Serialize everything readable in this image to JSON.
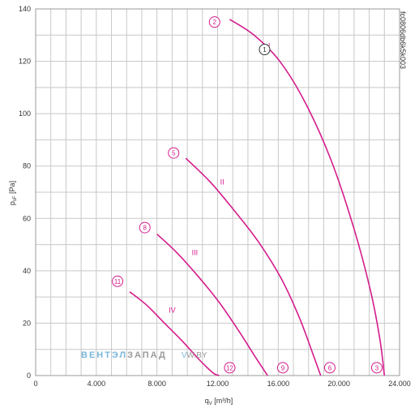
{
  "colors": {
    "curve": "#d41c8c",
    "grid": "#c8c8c8",
    "frame": "#999999",
    "watermark_blue": "#7ab8dc",
    "watermark_gray": "#9a9a9a"
  },
  "watermark": {
    "part1": "ВЕНТЭЛ",
    "part2": "ЗАПАД",
    "part3": "V",
    "part4": "W.BY"
  },
  "chart_data": {
    "type": "line",
    "code": "fc0806db6k5k003",
    "xlabel": "q",
    "xlabel_sub": "V",
    "xlabel_unit": " [m³/h]",
    "ylabel": "p",
    "ylabel_sub": "sF",
    "ylabel_unit": " [Pa]",
    "xlim": [
      0,
      24000
    ],
    "ylim": [
      0,
      140
    ],
    "x_ticks": [
      0,
      4000,
      8000,
      12000,
      16000,
      20000,
      24000
    ],
    "x_tick_labels": [
      "0",
      "4.000",
      "8.000",
      "12.000",
      "16.000",
      "20.000",
      "24.000"
    ],
    "y_ticks": [
      0,
      20,
      40,
      60,
      80,
      100,
      120,
      140
    ],
    "y_tick_labels": [
      "0",
      "20",
      "40",
      "60",
      "80",
      "100",
      "120",
      "140"
    ],
    "grid": true,
    "series": [
      {
        "name": "I",
        "label_at": [
          15400,
          125
        ],
        "x": [
          12800,
          14400,
          16100,
          17800,
          19500,
          21000,
          22100,
          22700,
          23000
        ],
        "y": [
          136,
          130,
          120,
          104,
          82,
          56,
          32,
          14,
          0
        ]
      },
      {
        "name": "II",
        "label_at": [
          12300,
          73
        ],
        "x": [
          9900,
          11500,
          13100,
          14700,
          16200,
          17400,
          18300,
          18800
        ],
        "y": [
          83,
          74,
          63,
          51,
          37,
          22,
          8,
          0
        ]
      },
      {
        "name": "III",
        "label_at": [
          10500,
          46
        ],
        "x": [
          8000,
          9300,
          10700,
          12100,
          13400,
          14500,
          15300
        ],
        "y": [
          54,
          47,
          38,
          28,
          17,
          7,
          0
        ]
      },
      {
        "name": "IV",
        "label_at": [
          9000,
          24
        ],
        "x": [
          6200,
          7300,
          8500,
          9700,
          10800,
          11700,
          12100
        ],
        "y": [
          32,
          27,
          20,
          13,
          6,
          1,
          0
        ]
      }
    ],
    "markers": [
      {
        "label": "1",
        "x": 15100,
        "y": 124.5,
        "style": "dark"
      },
      {
        "label": "2",
        "x": 11800,
        "y": 135
      },
      {
        "label": "3",
        "x": 22500,
        "y": 3
      },
      {
        "label": "5",
        "x": 9100,
        "y": 85
      },
      {
        "label": "6",
        "x": 19400,
        "y": 3
      },
      {
        "label": "8",
        "x": 7200,
        "y": 56.5
      },
      {
        "label": "9",
        "x": 16300,
        "y": 3
      },
      {
        "label": "11",
        "x": 5400,
        "y": 36
      },
      {
        "label": "12",
        "x": 12800,
        "y": 3
      }
    ]
  }
}
